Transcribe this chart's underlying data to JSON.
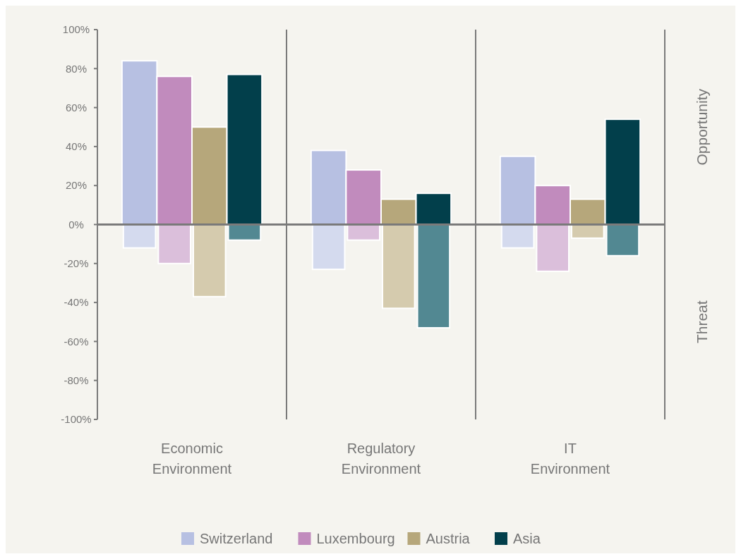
{
  "chart_data": {
    "type": "bar",
    "categories": [
      "Economic Environment",
      "Regulatory Environment",
      "IT Environment"
    ],
    "series": [
      {
        "name": "Switzerland",
        "color": "#b7c0e2",
        "values": [
          84,
          38,
          35
        ]
      },
      {
        "name": "Luxembourg",
        "color": "#c18bbd",
        "values": [
          76,
          28,
          20
        ]
      },
      {
        "name": "Austria",
        "color": "#b6a77b",
        "values": [
          50,
          13,
          13
        ]
      },
      {
        "name": "Asia",
        "color": "#023f4b",
        "values": [
          77,
          16,
          54
        ]
      },
      {
        "color": "#d4daee",
        "values": [
          -12,
          -23,
          -12
        ]
      },
      {
        "color": "#dbbfdb",
        "values": [
          -20,
          -8,
          -24
        ]
      },
      {
        "color": "#d5cbae",
        "values": [
          -37,
          -43,
          -7
        ]
      },
      {
        "color": "#528892",
        "values": [
          -8,
          -53,
          -16
        ]
      }
    ],
    "ylim": [
      -100,
      100
    ],
    "yticks": [
      {
        "value": -100,
        "label": "-100%"
      },
      {
        "value": -80,
        "label": "-80%"
      },
      {
        "value": -60,
        "label": "-60%"
      },
      {
        "value": -40,
        "label": "-40%"
      },
      {
        "value": -20,
        "label": "-20%"
      },
      {
        "value": 0,
        "label": "0%"
      },
      {
        "value": 20,
        "label": "20%"
      },
      {
        "value": 40,
        "label": "40%"
      },
      {
        "value": 60,
        "label": "60%"
      },
      {
        "value": 80,
        "label": "80%"
      },
      {
        "value": 100,
        "label": "100%"
      }
    ],
    "annotations": [
      "Opportunity",
      "Threat"
    ],
    "legend": "bottom"
  }
}
